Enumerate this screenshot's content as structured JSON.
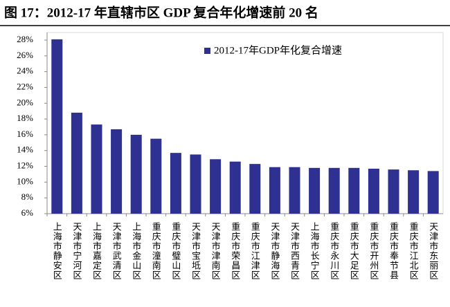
{
  "chart_data": {
    "type": "bar",
    "title": "图 17：2012-17 年直辖市区 GDP 复合年化增速前 20 名",
    "categories": [
      "上海市静安区",
      "天津市宁河区",
      "上海市嘉定区",
      "天津市武清区",
      "上海市金山区",
      "重庆市潼南区",
      "重庆市璧山区",
      "天津市宝坻区",
      "天津市津南区",
      "重庆市荣昌区",
      "重庆市江津区",
      "天津市静海区",
      "天津市西青区",
      "上海市长宁区",
      "重庆市永川区",
      "重庆市大足区",
      "重庆市开州区",
      "重庆市奉节县",
      "重庆市江北区",
      "天津市东丽区"
    ],
    "series": [
      {
        "name": "2012-17年GDP年化复合增速",
        "color": "#2e3192",
        "values": [
          28.1,
          18.8,
          17.3,
          16.7,
          16.0,
          15.5,
          13.7,
          13.5,
          12.9,
          12.6,
          12.3,
          11.9,
          11.9,
          11.8,
          11.8,
          11.8,
          11.7,
          11.6,
          11.5,
          11.4
        ]
      }
    ],
    "ylim": [
      6,
      28
    ],
    "yticks": [
      {
        "value": 6,
        "label": "6%"
      },
      {
        "value": 8,
        "label": "8%"
      },
      {
        "value": 10,
        "label": "10%"
      },
      {
        "value": 12,
        "label": "12%"
      },
      {
        "value": 14,
        "label": "14%"
      },
      {
        "value": 16,
        "label": "16%"
      },
      {
        "value": 18,
        "label": "18%"
      },
      {
        "value": 20,
        "label": "20%"
      },
      {
        "value": 22,
        "label": "22%"
      },
      {
        "value": 24,
        "label": "24%"
      },
      {
        "value": 26,
        "label": "26%"
      },
      {
        "value": 28,
        "label": "28%"
      }
    ],
    "grid": false,
    "legend": "top-right"
  }
}
